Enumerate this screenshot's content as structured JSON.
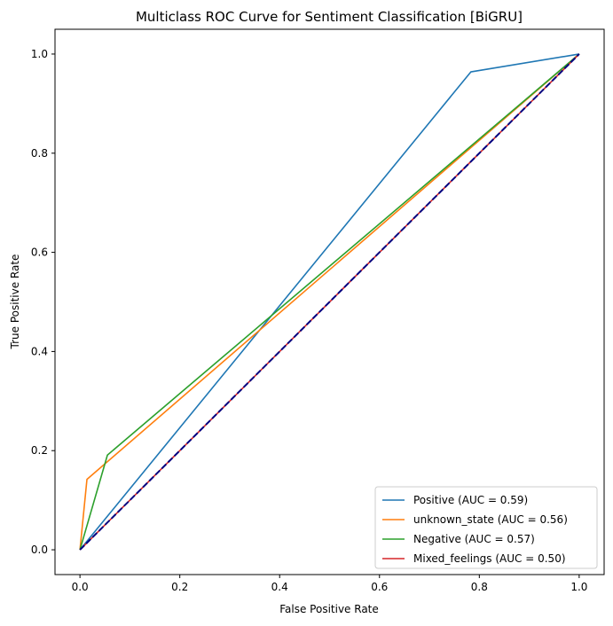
{
  "chart_data": {
    "type": "line",
    "title": "Multiclass ROC Curve for Sentiment Classification [BiGRU]",
    "xlabel": "False Positive Rate",
    "ylabel": "True Positive Rate",
    "xlim": [
      -0.05,
      1.05
    ],
    "ylim": [
      -0.05,
      1.05
    ],
    "xticks": [
      {
        "value": 0.0,
        "label": "0.0"
      },
      {
        "value": 0.2,
        "label": "0.2"
      },
      {
        "value": 0.4,
        "label": "0.4"
      },
      {
        "value": 0.6,
        "label": "0.6"
      },
      {
        "value": 0.8,
        "label": "0.8"
      },
      {
        "value": 1.0,
        "label": "1.0"
      }
    ],
    "yticks": [
      {
        "value": 0.0,
        "label": "0.0"
      },
      {
        "value": 0.2,
        "label": "0.2"
      },
      {
        "value": 0.4,
        "label": "0.4"
      },
      {
        "value": 0.6,
        "label": "0.6"
      },
      {
        "value": 0.8,
        "label": "0.8"
      },
      {
        "value": 1.0,
        "label": "1.0"
      }
    ],
    "grid": false,
    "legend_position": "lower right",
    "series": [
      {
        "name": "Positive (AUC = 0.59)",
        "color": "#1f77b4",
        "x": [
          0.0,
          0.783,
          1.0
        ],
        "y": [
          0.0,
          0.964,
          1.0
        ]
      },
      {
        "name": "unknown_state (AUC = 0.56)",
        "color": "#ff7f0e",
        "x": [
          0.0,
          0.014,
          1.0
        ],
        "y": [
          0.0,
          0.142,
          1.0
        ]
      },
      {
        "name": "Negative (AUC = 0.57)",
        "color": "#2ca02c",
        "x": [
          0.0,
          0.055,
          1.0
        ],
        "y": [
          0.0,
          0.191,
          1.0
        ]
      },
      {
        "name": "Mixed_feelings (AUC = 0.50)",
        "color": "#d62728",
        "x": [
          0.0,
          1.0
        ],
        "y": [
          0.0,
          1.0
        ]
      }
    ],
    "reference_line": {
      "color": "#000080",
      "style": "dashed",
      "x": [
        0.0,
        1.0
      ],
      "y": [
        0.0,
        1.0
      ]
    }
  }
}
